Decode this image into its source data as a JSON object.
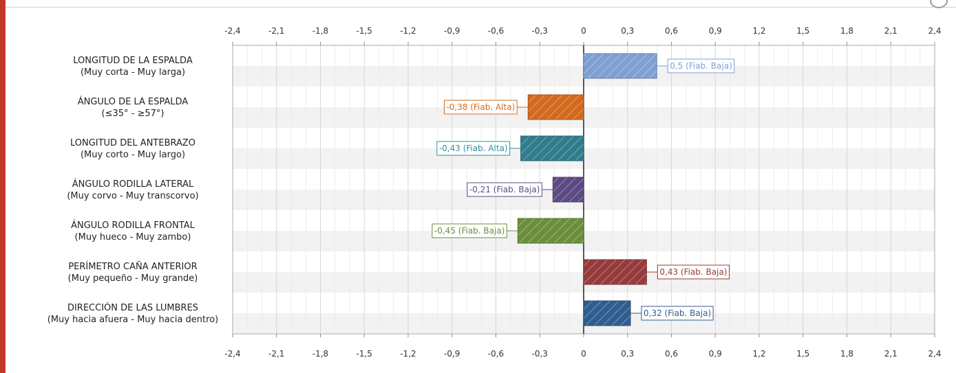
{
  "chart_data": {
    "type": "bar",
    "orientation": "horizontal",
    "xlim": [
      -2.4,
      2.4
    ],
    "x_ticks": [
      "-2,4",
      "-2,1",
      "-1,8",
      "-1,5",
      "-1,2",
      "-0,9",
      "-0,6",
      "-0,3",
      "0",
      "0,3",
      "0,6",
      "0,9",
      "1,2",
      "1,5",
      "1,8",
      "2,1",
      "2,4"
    ],
    "grid": true,
    "categories": [
      {
        "title": "LONGITUD DE LA ESPALDA",
        "range": "(Muy corta - Muy larga)",
        "value": 0.5,
        "label": "0,5 (Fiab. Baja)",
        "color": "#7f9fd3",
        "label_color": "#7f9fd3"
      },
      {
        "title": "ÁNGULO DE LA ESPALDA",
        "range": "(≤35° - ≥57°)",
        "value": -0.38,
        "label": "-0,38 (Fiab. Alta)",
        "color": "#d2691e",
        "label_color": "#d2691e"
      },
      {
        "title": "LONGITUD DEL ANTEBRAZO",
        "range": "(Muy corto - Muy largo)",
        "value": -0.43,
        "label": "-0,43 (Fiab. Alta)",
        "color": "#2f7c8c",
        "label_color": "#2f8fa3"
      },
      {
        "title": "ÁNGULO RODILLA LATERAL",
        "range": "(Muy corvo - Muy transcorvo)",
        "value": -0.21,
        "label": "-0,21 (Fiab. Baja)",
        "color": "#5b4b82",
        "label_color": "#5b4b82"
      },
      {
        "title": "ÁNGULO RODILLA FRONTAL",
        "range": "(Muy hueco - Muy zambo)",
        "value": -0.45,
        "label": "-0,45 (Fiab. Baja)",
        "color": "#6b8e3a",
        "label_color": "#6b8e3a"
      },
      {
        "title": "PERÍMETRO CAÑA ANTERIOR",
        "range": "(Muy pequeño - Muy grande)",
        "value": 0.43,
        "label": "0,43 (Fiab. Baja)",
        "color": "#963b3b",
        "label_color": "#963b3b"
      },
      {
        "title": "DIRECCIÓN DE LAS LUMBRES",
        "range": "(Muy hacia afuera - Muy hacia dentro)",
        "value": 0.32,
        "label": "0,32 (Fiab. Baja)",
        "color": "#2f5d8f",
        "label_color": "#2f5d8f"
      }
    ]
  }
}
